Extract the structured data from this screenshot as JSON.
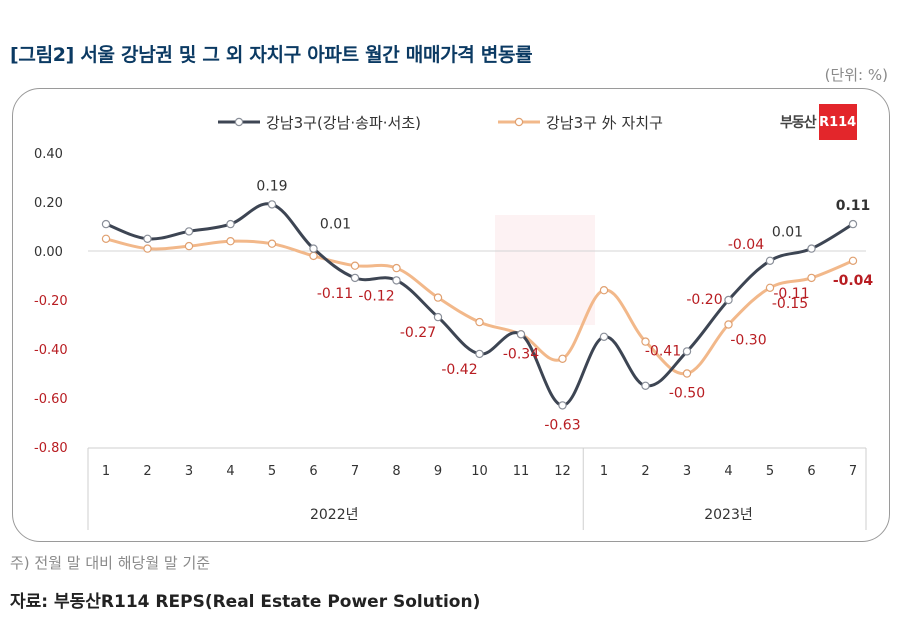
{
  "header": {
    "title": "[그림2] 서울 강남권 및 그 외 자치구 아파트 월간 매매가격 변동률",
    "unit": "(단위: %)"
  },
  "logo": {
    "text": "부동산",
    "badge": "R114"
  },
  "footer": {
    "note": "주) 전월 말 대비 해당월 말 기준",
    "source": "자료: 부동산R114 REPS(Real Estate Power Solution)"
  },
  "colors": {
    "gangnam": "#3d4553",
    "others": "#f2b88a",
    "neg_label": "#b81d22",
    "pos_label": "#333333"
  },
  "chart_data": {
    "type": "line",
    "title": "[그림2] 서울 강남권 및 그 외 자치구 아파트 월간 매매가격 변동률",
    "ylabel": "(단위: %)",
    "ylim": [
      -0.8,
      0.4
    ],
    "yticks": [
      "0.40",
      "0.20",
      "0.00",
      "-0.20",
      "-0.40",
      "-0.60",
      "-0.80"
    ],
    "ytick_values": [
      0.4,
      0.2,
      0.0,
      -0.2,
      -0.4,
      -0.6,
      -0.8
    ],
    "categories": [
      "1",
      "2",
      "3",
      "4",
      "5",
      "6",
      "7",
      "8",
      "9",
      "10",
      "11",
      "12",
      "1",
      "2",
      "3",
      "4",
      "5",
      "6",
      "7"
    ],
    "years": [
      {
        "label": "2022년",
        "start": 0,
        "end": 11
      },
      {
        "label": "2023년",
        "start": 12,
        "end": 18
      }
    ],
    "series": [
      {
        "name": "강남3구(강남·송파·서초)",
        "color": "#3d4553",
        "values": [
          0.11,
          0.05,
          0.08,
          0.11,
          0.19,
          0.01,
          -0.11,
          -0.12,
          -0.27,
          -0.42,
          -0.34,
          -0.63,
          -0.35,
          -0.55,
          -0.41,
          -0.2,
          -0.04,
          0.01,
          0.11
        ]
      },
      {
        "name": "강남3구 外 자치구",
        "color": "#f2b88a",
        "values": [
          0.05,
          0.01,
          0.02,
          0.04,
          0.03,
          -0.02,
          -0.06,
          -0.07,
          -0.19,
          -0.29,
          -0.34,
          -0.44,
          -0.16,
          -0.37,
          -0.5,
          -0.3,
          -0.15,
          -0.11,
          -0.04
        ]
      }
    ],
    "data_labels": [
      {
        "s": 0,
        "i": 4,
        "text": "0.19",
        "pos": "above",
        "bold": false
      },
      {
        "s": 0,
        "i": 5,
        "text": "0.01",
        "pos": "above-right",
        "bold": false
      },
      {
        "s": 0,
        "i": 6,
        "text": "-0.11",
        "pos": "below-left",
        "bold": false
      },
      {
        "s": 0,
        "i": 7,
        "text": "-0.12",
        "pos": "below-left",
        "bold": false
      },
      {
        "s": 0,
        "i": 8,
        "text": "-0.27",
        "pos": "below-left",
        "bold": false
      },
      {
        "s": 0,
        "i": 9,
        "text": "-0.42",
        "pos": "below-left",
        "bold": false
      },
      {
        "s": 0,
        "i": 10,
        "text": "-0.34",
        "pos": "below",
        "bold": false
      },
      {
        "s": 0,
        "i": 11,
        "text": "-0.63",
        "pos": "below",
        "bold": false
      },
      {
        "s": 0,
        "i": 14,
        "text": "-0.41",
        "pos": "left",
        "bold": false
      },
      {
        "s": 0,
        "i": 15,
        "text": "-0.20",
        "pos": "left",
        "bold": false
      },
      {
        "s": 0,
        "i": 16,
        "text": "-0.04",
        "pos": "left-up",
        "bold": false
      },
      {
        "s": 0,
        "i": 17,
        "text": "0.01",
        "pos": "left-up",
        "bold": false
      },
      {
        "s": 0,
        "i": 18,
        "text": "0.11",
        "pos": "above",
        "bold": true
      },
      {
        "s": 1,
        "i": 14,
        "text": "-0.50",
        "pos": "below",
        "bold": false
      },
      {
        "s": 1,
        "i": 15,
        "text": "-0.30",
        "pos": "below-right",
        "bold": false
      },
      {
        "s": 1,
        "i": 16,
        "text": "-0.15",
        "pos": "below-right",
        "bold": false
      },
      {
        "s": 1,
        "i": 17,
        "text": "-0.11",
        "pos": "below-left",
        "bold": false
      },
      {
        "s": 1,
        "i": 18,
        "text": "-0.04",
        "pos": "below",
        "bold": true
      }
    ]
  }
}
